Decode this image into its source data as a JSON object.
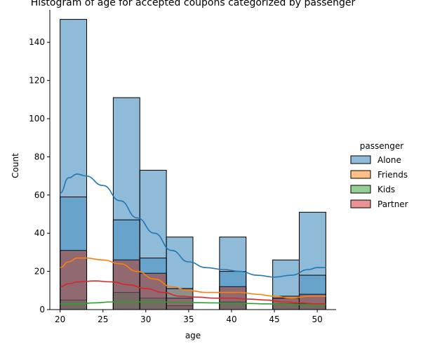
{
  "chart_data": {
    "type": "bar",
    "title": "Histogram of age for accepted coupons categorized by passenger",
    "xlabel": "age",
    "ylabel": "Count",
    "xlim": [
      18.8,
      52.2
    ],
    "ylim": [
      0,
      157
    ],
    "xticks": [
      20,
      25,
      30,
      35,
      40,
      45,
      50
    ],
    "yticks": [
      0,
      20,
      40,
      60,
      80,
      100,
      120,
      140
    ],
    "legend_title": "passenger",
    "legend_position": "right",
    "grid": false,
    "bins": [
      [
        20.0,
        23.1
      ],
      [
        23.1,
        26.2
      ],
      [
        26.2,
        29.3
      ],
      [
        29.3,
        32.4
      ],
      [
        32.4,
        35.5
      ],
      [
        35.5,
        38.6
      ],
      [
        38.6,
        41.7
      ],
      [
        41.7,
        44.8
      ],
      [
        44.8,
        47.9
      ],
      [
        47.9,
        51.0
      ]
    ],
    "series": [
      {
        "name": "Alone",
        "color": "#1f77b4",
        "values": [
          152,
          0,
          111,
          73,
          38,
          0,
          38,
          0,
          26,
          51
        ],
        "kde_x": [
          20,
          21,
          22,
          23,
          25,
          27,
          29,
          31,
          33,
          35,
          37,
          39,
          41,
          43,
          45,
          47,
          49,
          50,
          51
        ],
        "kde_y": [
          61,
          69,
          71,
          70,
          65,
          57,
          48,
          40,
          31,
          25,
          22,
          21,
          20,
          18,
          17,
          18,
          21,
          22,
          22
        ]
      },
      {
        "name": "Friends",
        "color": "#ff7f0e",
        "values": [
          31,
          0,
          26,
          19,
          11,
          0,
          12,
          0,
          7,
          8
        ],
        "kde_x": [
          20,
          21,
          22,
          23,
          25,
          27,
          29,
          31,
          33,
          35,
          37,
          39,
          41,
          43,
          45,
          47,
          49,
          51
        ],
        "kde_y": [
          22,
          25,
          27,
          27,
          26,
          24,
          20,
          16,
          12,
          10,
          9,
          9,
          9,
          8,
          7,
          6,
          7,
          7
        ]
      },
      {
        "name": "Kids",
        "color": "#2ca02c",
        "values": [
          5,
          0,
          9,
          6,
          2,
          0,
          4,
          0,
          3,
          3
        ],
        "kde_x": [
          20,
          22,
          24,
          26,
          28,
          30,
          32,
          34,
          36,
          38,
          40,
          42,
          44,
          46,
          48,
          50,
          51
        ],
        "kde_y": [
          3,
          3,
          3.5,
          4,
          4,
          4,
          4,
          3.8,
          3.6,
          3.5,
          3.4,
          3.2,
          3,
          2.8,
          2.6,
          2.5,
          2.5
        ]
      },
      {
        "name": "Partner",
        "color": "#d62728",
        "values": [
          31,
          0,
          26,
          19,
          6,
          0,
          12,
          0,
          6,
          8
        ],
        "kde_x": [
          20,
          21,
          22,
          24,
          26,
          28,
          30,
          32,
          34,
          36,
          38,
          40,
          42,
          44,
          46,
          48,
          50,
          51
        ],
        "kde_y": [
          12,
          13.5,
          14.5,
          15,
          14.5,
          13,
          11,
          9,
          7,
          6.5,
          6,
          6,
          5.5,
          5,
          4,
          3.5,
          3,
          3
        ]
      }
    ],
    "overlap_top_values": [
      59,
      0,
      47,
      27,
      11,
      0,
      20,
      0,
      6,
      18
    ]
  }
}
